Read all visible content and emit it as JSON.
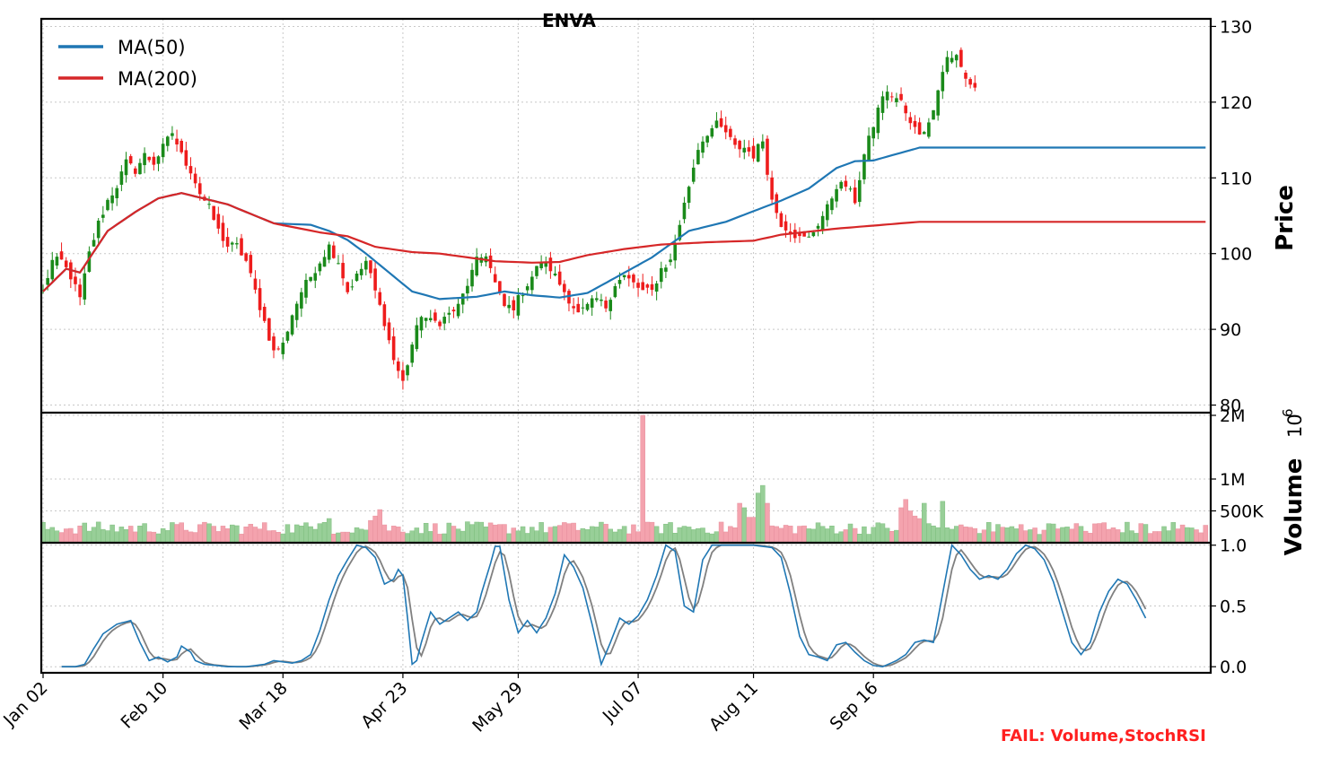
{
  "chart_data": {
    "type": "candlestick",
    "title": "ENVA",
    "x_tick_labels": [
      "Jan 02",
      "Feb 10",
      "Mar 18",
      "Apr 23",
      "May 29",
      "Jul 07",
      "Aug 11",
      "Sep 16"
    ],
    "x_tick_index": [
      0,
      26,
      52,
      78,
      103,
      129,
      154,
      180
    ],
    "colors": {
      "up": "#1a8a1a",
      "down": "#ee1c1c",
      "vol_up": "#98cf98",
      "vol_down": "#f4a3ae",
      "ma50": "#1f77b4",
      "ma200": "#d62728",
      "stoch_k": "#1f77b4",
      "stoch_d": "#808080",
      "fail": "#ff2020"
    },
    "price_panel": {
      "ylabel": "Price",
      "ylim": [
        79,
        131
      ],
      "yticks": [
        80,
        90,
        100,
        110,
        120,
        130
      ],
      "legend": [
        "MA(50)",
        "MA(200)"
      ],
      "close_anchors": [
        [
          0,
          95
        ],
        [
          2,
          99
        ],
        [
          4,
          99
        ],
        [
          6,
          97
        ],
        [
          8,
          94
        ],
        [
          10,
          100
        ],
        [
          12,
          104
        ],
        [
          14,
          107
        ],
        [
          16,
          109
        ],
        [
          18,
          112
        ],
        [
          20,
          111
        ],
        [
          22,
          113
        ],
        [
          24,
          112
        ],
        [
          26,
          114
        ],
        [
          28,
          116
        ],
        [
          30,
          113
        ],
        [
          32,
          111
        ],
        [
          34,
          108
        ],
        [
          36,
          106
        ],
        [
          38,
          103
        ],
        [
          40,
          101
        ],
        [
          42,
          101
        ],
        [
          44,
          99
        ],
        [
          46,
          95
        ],
        [
          48,
          91
        ],
        [
          50,
          87
        ],
        [
          52,
          88
        ],
        [
          54,
          92
        ],
        [
          56,
          95
        ],
        [
          58,
          97
        ],
        [
          60,
          99
        ],
        [
          62,
          101
        ],
        [
          64,
          99
        ],
        [
          66,
          95
        ],
        [
          68,
          97
        ],
        [
          70,
          99
        ],
        [
          72,
          95
        ],
        [
          74,
          91
        ],
        [
          76,
          86
        ],
        [
          78,
          83
        ],
        [
          80,
          88
        ],
        [
          82,
          92
        ],
        [
          84,
          91
        ],
        [
          86,
          91
        ],
        [
          88,
          92
        ],
        [
          90,
          93
        ],
        [
          92,
          96
        ],
        [
          94,
          99
        ],
        [
          96,
          100
        ],
        [
          98,
          96
        ],
        [
          100,
          93
        ],
        [
          102,
          93
        ],
        [
          104,
          95
        ],
        [
          106,
          97
        ],
        [
          108,
          99
        ],
        [
          110,
          98
        ],
        [
          112,
          96
        ],
        [
          114,
          94
        ],
        [
          116,
          92
        ],
        [
          118,
          93
        ],
        [
          120,
          94
        ],
        [
          122,
          93
        ],
        [
          124,
          96
        ],
        [
          126,
          97
        ],
        [
          128,
          96
        ],
        [
          130,
          95
        ],
        [
          132,
          95
        ],
        [
          134,
          98
        ],
        [
          136,
          99
        ],
        [
          138,
          104
        ],
        [
          140,
          109
        ],
        [
          142,
          114
        ],
        [
          144,
          116
        ],
        [
          146,
          117
        ],
        [
          148,
          116
        ],
        [
          150,
          114
        ],
        [
          152,
          114
        ],
        [
          154,
          113
        ],
        [
          156,
          115
        ],
        [
          158,
          107
        ],
        [
          160,
          104
        ],
        [
          162,
          103
        ],
        [
          164,
          102
        ],
        [
          166,
          102
        ],
        [
          168,
          104
        ],
        [
          170,
          106
        ],
        [
          172,
          109
        ],
        [
          174,
          109
        ],
        [
          176,
          107
        ],
        [
          178,
          113
        ],
        [
          180,
          117
        ],
        [
          182,
          121
        ],
        [
          184,
          121
        ],
        [
          186,
          120
        ],
        [
          188,
          117
        ],
        [
          190,
          116
        ],
        [
          192,
          117
        ],
        [
          194,
          122
        ],
        [
          196,
          126
        ],
        [
          198,
          126
        ],
        [
          200,
          123
        ],
        [
          202,
          122
        ]
      ],
      "volatility": 1.2,
      "ma50_anchors": [
        [
          0,
          95
        ],
        [
          5,
          98
        ],
        [
          8,
          97.5
        ],
        [
          14,
          103
        ],
        [
          20,
          105.5
        ],
        [
          25,
          107.3
        ],
        [
          30,
          108
        ],
        [
          40,
          106.5
        ],
        [
          50,
          104
        ],
        [
          58,
          103.8
        ],
        [
          62,
          103
        ],
        [
          66,
          101.8
        ],
        [
          70,
          100
        ],
        [
          76,
          97
        ],
        [
          80,
          95
        ],
        [
          86,
          94
        ],
        [
          94,
          94.3
        ],
        [
          100,
          95
        ],
        [
          106,
          94.5
        ],
        [
          112,
          94.2
        ],
        [
          118,
          94.8
        ],
        [
          124,
          96.8
        ],
        [
          132,
          99.5
        ],
        [
          140,
          103
        ],
        [
          148,
          104.2
        ],
        [
          154,
          105.6
        ],
        [
          160,
          107
        ],
        [
          166,
          108.6
        ],
        [
          172,
          111.3
        ],
        [
          176,
          112.2
        ],
        [
          180,
          112.3
        ],
        [
          190,
          114
        ]
      ],
      "ma200_anchors": [
        [
          0,
          95
        ],
        [
          5,
          98
        ],
        [
          8,
          97.5
        ],
        [
          14,
          103
        ],
        [
          20,
          105.5
        ],
        [
          25,
          107.3
        ],
        [
          30,
          108
        ],
        [
          40,
          106.5
        ],
        [
          50,
          104
        ],
        [
          60,
          102.8
        ],
        [
          66,
          102.3
        ],
        [
          72,
          100.9
        ],
        [
          80,
          100.2
        ],
        [
          86,
          100
        ],
        [
          98,
          99
        ],
        [
          106,
          98.8
        ],
        [
          112,
          98.9
        ],
        [
          118,
          99.8
        ],
        [
          126,
          100.6
        ],
        [
          134,
          101.2
        ],
        [
          144,
          101.5
        ],
        [
          154,
          101.7
        ],
        [
          160,
          102.5
        ],
        [
          172,
          103.3
        ],
        [
          190,
          104.2
        ]
      ]
    },
    "volume_panel": {
      "ylabel": "Volume",
      "exponent_label": "10",
      "exponent_sup": "6",
      "ylim": [
        0,
        2.0
      ],
      "yticks": [
        0.5,
        1.0,
        2.0
      ],
      "ytick_labels": [
        "500K",
        "1M",
        "2M"
      ],
      "base_millions": 0.22,
      "spikes": [
        [
          130,
          2.0
        ],
        [
          114,
          0.3
        ],
        [
          151,
          0.62
        ],
        [
          152,
          0.55
        ],
        [
          153,
          0.4
        ],
        [
          154,
          0.4
        ],
        [
          155,
          0.78
        ],
        [
          156,
          0.9
        ],
        [
          157,
          0.62
        ],
        [
          71,
          0.35
        ],
        [
          72,
          0.42
        ],
        [
          73,
          0.52
        ],
        [
          186,
          0.55
        ],
        [
          187,
          0.68
        ],
        [
          188,
          0.5
        ],
        [
          189,
          0.42
        ],
        [
          190,
          0.38
        ],
        [
          191,
          0.62
        ],
        [
          195,
          0.65
        ],
        [
          60,
          0.3
        ],
        [
          61,
          0.32
        ],
        [
          62,
          0.38
        ]
      ]
    },
    "stochrsi_panel": {
      "ylim": [
        -0.05,
        1.02
      ],
      "yticks": [
        0.0,
        0.5,
        1.0
      ],
      "ytick_labels": [
        "0.0",
        "0.5",
        "1.0"
      ],
      "k_anchors": [
        [
          0,
          0
        ],
        [
          3,
          0
        ],
        [
          5,
          0.02
        ],
        [
          7,
          0.15
        ],
        [
          9,
          0.27
        ],
        [
          12,
          0.35
        ],
        [
          15,
          0.38
        ],
        [
          17,
          0.2
        ],
        [
          19,
          0.05
        ],
        [
          21,
          0.08
        ],
        [
          23,
          0.04
        ],
        [
          25,
          0.08
        ],
        [
          26,
          0.17
        ],
        [
          28,
          0.12
        ],
        [
          29,
          0.05
        ],
        [
          31,
          0.02
        ],
        [
          36,
          0
        ],
        [
          40,
          0
        ],
        [
          44,
          0.02
        ],
        [
          46,
          0.05
        ],
        [
          50,
          0.03
        ],
        [
          52,
          0.05
        ],
        [
          54,
          0.1
        ],
        [
          56,
          0.3
        ],
        [
          58,
          0.55
        ],
        [
          60,
          0.75
        ],
        [
          62,
          0.88
        ],
        [
          64,
          1.0
        ],
        [
          66,
          0.98
        ],
        [
          68,
          0.9
        ],
        [
          70,
          0.68
        ],
        [
          72,
          0.72
        ],
        [
          73,
          0.8
        ],
        [
          74,
          0.75
        ],
        [
          75,
          0.4
        ],
        [
          76,
          0.02
        ],
        [
          77,
          0.05
        ],
        [
          78,
          0.2
        ],
        [
          80,
          0.45
        ],
        [
          82,
          0.35
        ],
        [
          84,
          0.4
        ],
        [
          86,
          0.45
        ],
        [
          88,
          0.38
        ],
        [
          90,
          0.45
        ],
        [
          91,
          0.6
        ],
        [
          93,
          0.85
        ],
        [
          94,
          0.99
        ],
        [
          95,
          0.99
        ],
        [
          97,
          0.55
        ],
        [
          99,
          0.28
        ],
        [
          101,
          0.38
        ],
        [
          103,
          0.28
        ],
        [
          105,
          0.4
        ],
        [
          107,
          0.6
        ],
        [
          109,
          0.92
        ],
        [
          111,
          0.82
        ],
        [
          113,
          0.65
        ],
        [
          115,
          0.35
        ],
        [
          117,
          0.02
        ],
        [
          119,
          0.2
        ],
        [
          121,
          0.4
        ],
        [
          123,
          0.35
        ],
        [
          125,
          0.42
        ],
        [
          127,
          0.55
        ],
        [
          129,
          0.75
        ],
        [
          131,
          1.0
        ],
        [
          133,
          0.95
        ],
        [
          135,
          0.5
        ],
        [
          137,
          0.45
        ],
        [
          139,
          0.88
        ],
        [
          141,
          1.0
        ],
        [
          150,
          1.0
        ],
        [
          154,
          0.98
        ],
        [
          156,
          0.9
        ],
        [
          158,
          0.6
        ],
        [
          160,
          0.25
        ],
        [
          162,
          0.1
        ],
        [
          164,
          0.08
        ],
        [
          166,
          0.05
        ],
        [
          168,
          0.18
        ],
        [
          170,
          0.2
        ],
        [
          172,
          0.12
        ],
        [
          174,
          0.05
        ],
        [
          176,
          0.01
        ],
        [
          178,
          0.0
        ],
        [
          181,
          0.05
        ],
        [
          183,
          0.1
        ],
        [
          185,
          0.2
        ],
        [
          187,
          0.22
        ],
        [
          189,
          0.2
        ],
        [
          191,
          0.6
        ],
        [
          193,
          1.0
        ],
        [
          195,
          0.92
        ],
        [
          197,
          0.8
        ],
        [
          199,
          0.72
        ],
        [
          201,
          0.75
        ],
        [
          203,
          0.72
        ],
        [
          205,
          0.8
        ],
        [
          207,
          0.93
        ],
        [
          209,
          1.0
        ],
        [
          211,
          0.97
        ],
        [
          213,
          0.88
        ],
        [
          215,
          0.7
        ],
        [
          217,
          0.45
        ],
        [
          219,
          0.2
        ],
        [
          221,
          0.1
        ],
        [
          223,
          0.2
        ],
        [
          225,
          0.45
        ],
        [
          227,
          0.62
        ],
        [
          229,
          0.72
        ],
        [
          231,
          0.68
        ],
        [
          233,
          0.55
        ],
        [
          235,
          0.4
        ]
      ]
    },
    "status_text": "FAIL: Volume,StochRSI"
  }
}
